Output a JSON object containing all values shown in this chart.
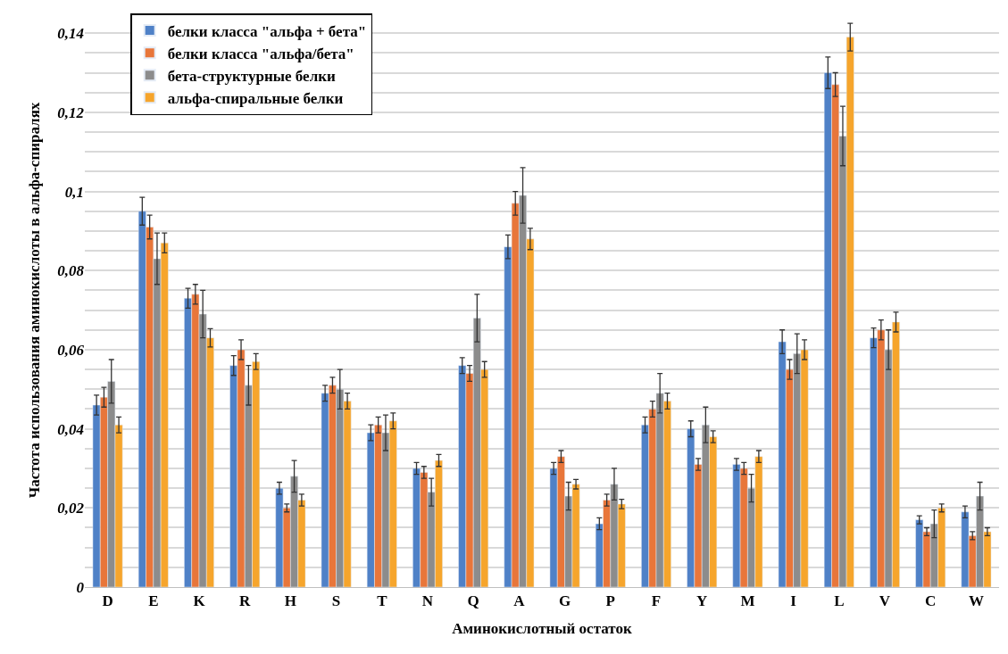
{
  "chart_data": {
    "type": "bar",
    "xlabel": "Аминокислотный остаток",
    "ylabel": "Частота использования аминокислоты в альфа-спиралях",
    "categories": [
      "D",
      "E",
      "K",
      "R",
      "H",
      "S",
      "T",
      "N",
      "Q",
      "A",
      "G",
      "P",
      "F",
      "Y",
      "M",
      "I",
      "L",
      "V",
      "C",
      "W"
    ],
    "series": [
      {
        "name": "белки класса \"альфа + бета\"",
        "color": "#4f81c7",
        "values": [
          0.046,
          0.095,
          0.073,
          0.056,
          0.025,
          0.049,
          0.039,
          0.03,
          0.056,
          0.086,
          0.03,
          0.016,
          0.041,
          0.04,
          0.031,
          0.062,
          0.13,
          0.063,
          0.017,
          0.019
        ],
        "errors": [
          0.0025,
          0.0035,
          0.0025,
          0.0025,
          0.0015,
          0.002,
          0.002,
          0.0015,
          0.002,
          0.003,
          0.0015,
          0.0015,
          0.002,
          0.002,
          0.0015,
          0.003,
          0.004,
          0.0025,
          0.001,
          0.0015
        ]
      },
      {
        "name": "белки класса \"альфа/бета\"",
        "color": "#e8763a",
        "values": [
          0.048,
          0.091,
          0.074,
          0.06,
          0.02,
          0.051,
          0.041,
          0.029,
          0.054,
          0.097,
          0.033,
          0.022,
          0.045,
          0.031,
          0.03,
          0.055,
          0.127,
          0.065,
          0.014,
          0.013
        ],
        "errors": [
          0.0025,
          0.003,
          0.0025,
          0.0025,
          0.001,
          0.002,
          0.002,
          0.0015,
          0.002,
          0.003,
          0.0015,
          0.0015,
          0.002,
          0.0015,
          0.0015,
          0.0025,
          0.003,
          0.0025,
          0.001,
          0.001
        ]
      },
      {
        "name": "бета-структурные белки",
        "color": "#8c8c8c",
        "values": [
          0.052,
          0.083,
          0.069,
          0.051,
          0.028,
          0.05,
          0.039,
          0.024,
          0.068,
          0.099,
          0.023,
          0.026,
          0.049,
          0.041,
          0.025,
          0.059,
          0.114,
          0.06,
          0.016,
          0.023
        ],
        "errors": [
          0.0055,
          0.0065,
          0.006,
          0.005,
          0.004,
          0.005,
          0.0045,
          0.0035,
          0.006,
          0.007,
          0.0035,
          0.004,
          0.005,
          0.0045,
          0.0035,
          0.005,
          0.0075,
          0.005,
          0.0035,
          0.0035
        ]
      },
      {
        "name": "альфа-спиральные белки",
        "color": "#f6a52c",
        "values": [
          0.041,
          0.087,
          0.063,
          0.057,
          0.022,
          0.047,
          0.042,
          0.032,
          0.055,
          0.088,
          0.026,
          0.021,
          0.047,
          0.038,
          0.033,
          0.06,
          0.139,
          0.067,
          0.02,
          0.014
        ],
        "errors": [
          0.002,
          0.0025,
          0.0023,
          0.002,
          0.0015,
          0.002,
          0.002,
          0.0015,
          0.002,
          0.0027,
          0.0012,
          0.0012,
          0.002,
          0.0015,
          0.0015,
          0.0025,
          0.0035,
          0.0025,
          0.001,
          0.001
        ]
      }
    ],
    "ylim": [
      0,
      0.145
    ],
    "yticks": [
      {
        "value": 0,
        "label": "0"
      },
      {
        "value": 0.005,
        "label": null
      },
      {
        "value": 0.01,
        "label": null
      },
      {
        "value": 0.015,
        "label": null
      },
      {
        "value": 0.02,
        "label": "0,02"
      },
      {
        "value": 0.025,
        "label": null
      },
      {
        "value": 0.03,
        "label": null
      },
      {
        "value": 0.035,
        "label": null
      },
      {
        "value": 0.04,
        "label": "0,04"
      },
      {
        "value": 0.045,
        "label": null
      },
      {
        "value": 0.05,
        "label": null
      },
      {
        "value": 0.055,
        "label": null
      },
      {
        "value": 0.06,
        "label": "0,06"
      },
      {
        "value": 0.065,
        "label": null
      },
      {
        "value": 0.07,
        "label": null
      },
      {
        "value": 0.075,
        "label": null
      },
      {
        "value": 0.08,
        "label": "0,08"
      },
      {
        "value": 0.085,
        "label": null
      },
      {
        "value": 0.09,
        "label": null
      },
      {
        "value": 0.095,
        "label": null
      },
      {
        "value": 0.1,
        "label": "0,1"
      },
      {
        "value": 0.105,
        "label": null
      },
      {
        "value": 0.11,
        "label": null
      },
      {
        "value": 0.115,
        "label": null
      },
      {
        "value": 0.12,
        "label": "0,12"
      },
      {
        "value": 0.125,
        "label": null
      },
      {
        "value": 0.13,
        "label": null
      },
      {
        "value": 0.135,
        "label": null
      },
      {
        "value": 0.14,
        "label": "0,14"
      }
    ],
    "grid": "y",
    "legend": "top left"
  }
}
